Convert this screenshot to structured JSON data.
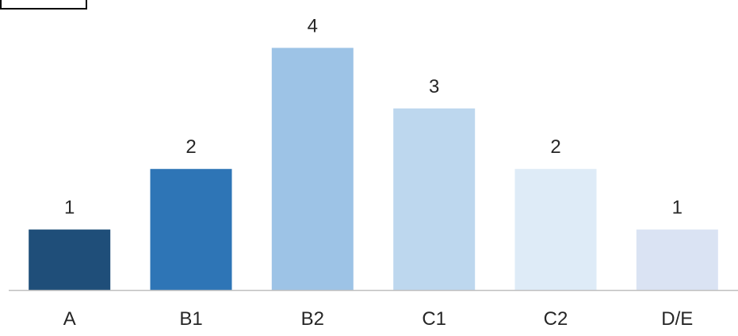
{
  "chart_data": {
    "type": "bar",
    "categories": [
      "A",
      "B1",
      "B2",
      "C1",
      "C2",
      "D/E"
    ],
    "values": [
      1,
      2,
      4,
      3,
      2,
      1
    ],
    "data_labels": [
      "1",
      "2",
      "4",
      "3",
      "2",
      "1"
    ],
    "bar_colors": [
      "#1F4E79",
      "#2E75B6",
      "#9DC3E6",
      "#BDD7EE",
      "#DEEBF7",
      "#DAE3F3"
    ],
    "axis_line_color": "#BFBFBF",
    "grid": false,
    "legend": "none",
    "title": "",
    "xlabel": "",
    "ylabel": ""
  }
}
